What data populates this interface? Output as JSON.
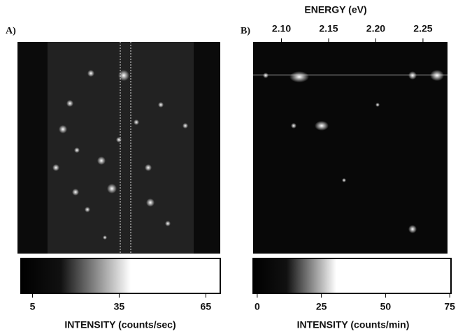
{
  "panels": [
    {
      "label": "A)",
      "colorbar": {
        "lim": [
          1,
          70
        ],
        "ticks": [
          5,
          35,
          65
        ],
        "label": "INTENSITY (counts/sec)"
      }
    },
    {
      "label": "B)",
      "top_axis": {
        "label": "ENERGY (eV)",
        "lim": [
          2.07,
          2.276
        ],
        "ticks": [
          {
            "value": 2.1,
            "label": "2.10"
          },
          {
            "value": 2.15,
            "label": "2.15"
          },
          {
            "value": 2.2,
            "label": "2.20"
          },
          {
            "value": 2.25,
            "label": "2.25"
          }
        ]
      },
      "colorbar": {
        "lim": [
          -1.6,
          75.5
        ],
        "ticks": [
          0,
          25,
          50,
          75
        ],
        "label": "INTENSITY (counts/min)"
      }
    }
  ]
}
